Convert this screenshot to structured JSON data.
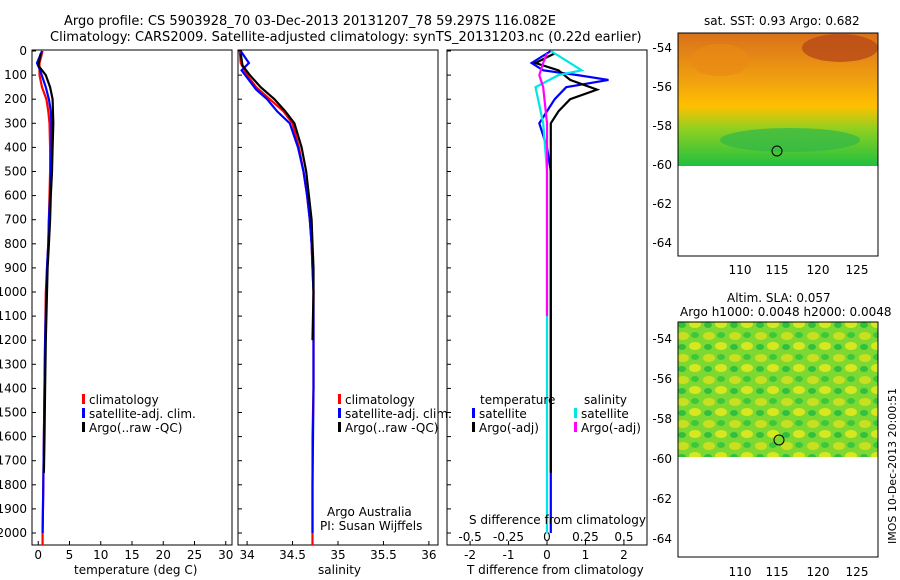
{
  "header": {
    "line1": "Argo profile: CS 5903928_70 03-Dec-2013 20131207_78 59.297S 116.082E",
    "line2": "Climatology: CARS2009. Satellite-adjusted climatology: synTS_20131203.nc (0.22d earlier)"
  },
  "depth_ticks": [
    "0",
    "100",
    "200",
    "300",
    "400",
    "500",
    "600",
    "700",
    "800",
    "900",
    "1000",
    "1100",
    "1200",
    "1300",
    "1400",
    "1500",
    "1600",
    "1700",
    "1800",
    "1900",
    "2000"
  ],
  "colors": {
    "climatology": "#ff0000",
    "satellite": "#0000ff",
    "argo": "#000000",
    "sat_salinity": "#00e5e5",
    "argo_salinity": "#ff00ff"
  },
  "temp_panel": {
    "xlabel": "temperature (deg C)",
    "xticks": [
      "0",
      "5",
      "10",
      "15",
      "20",
      "25",
      "30"
    ],
    "legend": [
      "climatology",
      "satellite-adj. clim.",
      "Argo(..raw -QC)"
    ]
  },
  "sal_panel": {
    "xlabel": "salinity",
    "xticks": [
      "34",
      "34.5",
      "35",
      "35.5",
      "36"
    ],
    "legend": [
      "climatology",
      "satellite-adj. clim.",
      "Argo(..raw -QC)"
    ],
    "note1": "Argo Australia",
    "note2": "PI: Susan Wijffels"
  },
  "diff_panel": {
    "xlabel": "T difference from climatology",
    "top_label": "S difference from climatology",
    "xticks": [
      "-2",
      "-1",
      "0",
      "1",
      "2"
    ],
    "top_ticks": [
      "-0.5",
      "-0.25",
      "0",
      "0.25",
      "0.5"
    ],
    "legend_temp_title": "temperature",
    "legend_sal_title": "salinity",
    "legend_temp": [
      "satellite",
      "Argo(-adj)"
    ],
    "legend_sal": [
      "satellite",
      "Argo(-adj)"
    ]
  },
  "sst_map": {
    "title": "sat. SST: 0.93 Argo: 0.682",
    "lat_ticks": [
      "-54",
      "-56",
      "-58",
      "-60",
      "-62",
      "-64"
    ],
    "lon_ticks": [
      "110",
      "115",
      "120",
      "125"
    ]
  },
  "sla_map": {
    "title1": "Altim. SLA: 0.057",
    "title2": "Argo h1000: 0.0048 h2000: 0.0048",
    "lat_ticks": [
      "-54",
      "-56",
      "-58",
      "-60",
      "-62",
      "-64"
    ],
    "lon_ticks": [
      "110",
      "115",
      "120",
      "125"
    ]
  },
  "stamp": "IMOS 10-Dec-2013 20:00:51",
  "chart_data": [
    {
      "type": "line",
      "xlabel": "temperature (deg C)",
      "xlim": [
        -1,
        31
      ],
      "ylim": [
        2050,
        0
      ],
      "series": [
        {
          "name": "climatology",
          "x": [
            0.7,
            0.2,
            0.2,
            0.6,
            1.3,
            1.6,
            1.8,
            1.9,
            1.9,
            1.8,
            1.7,
            1.6,
            1.4,
            1.2,
            1.1,
            1.0,
            0.9,
            0.8,
            0.7,
            0.7
          ],
          "y": [
            0,
            50,
            100,
            150,
            200,
            250,
            300,
            400,
            500,
            600,
            700,
            800,
            900,
            1000,
            1200,
            1400,
            1600,
            1800,
            2000,
            2050
          ]
        },
        {
          "name": "satellite-adj. clim.",
          "x": [
            0.6,
            -0.2,
            0.3,
            1.2,
            1.7,
            2.0,
            2.1,
            2.1,
            2.0,
            1.9,
            1.7,
            1.6,
            1.4,
            1.3,
            1.1,
            1.0,
            0.9,
            0.8,
            0.7
          ],
          "y": [
            0,
            50,
            80,
            150,
            200,
            250,
            300,
            400,
            500,
            600,
            700,
            800,
            900,
            1000,
            1200,
            1400,
            1600,
            1800,
            2000
          ]
        },
        {
          "name": "Argo(..raw -QC)",
          "x": [
            0.4,
            0.0,
            1.2,
            1.9,
            2.3,
            2.4,
            2.3,
            2.2,
            2.0,
            1.9,
            1.7,
            1.5,
            1.4,
            1.2,
            1.1,
            1.0,
            0.9
          ],
          "y": [
            10,
            60,
            100,
            150,
            200,
            300,
            400,
            500,
            600,
            700,
            800,
            900,
            1000,
            1200,
            1400,
            1600,
            1750
          ]
        }
      ]
    },
    {
      "type": "line",
      "xlabel": "salinity",
      "xlim": [
        33.9,
        36.1
      ],
      "ylim": [
        2050,
        0
      ],
      "series": [
        {
          "name": "climatology",
          "x": [
            33.92,
            33.93,
            34.0,
            34.1,
            34.25,
            34.4,
            34.5,
            34.57,
            34.62,
            34.66,
            34.69,
            34.71,
            34.72,
            34.73,
            34.73,
            34.73,
            34.72,
            34.72,
            34.72,
            34.72
          ],
          "y": [
            0,
            50,
            100,
            150,
            200,
            250,
            300,
            400,
            500,
            600,
            700,
            800,
            900,
            1000,
            1200,
            1400,
            1600,
            1800,
            2000,
            2050
          ]
        },
        {
          "name": "satellite-adj. clim.",
          "x": [
            33.93,
            34.02,
            33.94,
            34.02,
            34.1,
            34.22,
            34.33,
            34.47,
            34.56,
            34.62,
            34.66,
            34.69,
            34.71,
            34.72,
            34.73,
            34.73,
            34.73,
            34.72,
            34.72
          ],
          "y": [
            0,
            50,
            80,
            120,
            160,
            200,
            250,
            300,
            400,
            500,
            600,
            700,
            800,
            900,
            1000,
            1200,
            1400,
            1800,
            2000
          ]
        },
        {
          "name": "Argo(..raw -QC)",
          "x": [
            33.93,
            33.95,
            34.03,
            34.15,
            34.3,
            34.42,
            34.52,
            34.6,
            34.65,
            34.68,
            34.71,
            34.72,
            34.73,
            34.73,
            34.72
          ],
          "y": [
            10,
            60,
            100,
            150,
            200,
            250,
            300,
            400,
            500,
            600,
            700,
            800,
            900,
            1000,
            1200
          ]
        }
      ]
    },
    {
      "type": "line",
      "xlabel": "T difference from climatology",
      "xlim": [
        -2.6,
        2.6
      ],
      "ylim": [
        2050,
        0
      ],
      "series": [
        {
          "name": "temperature satellite",
          "x": [
            0.1,
            -0.4,
            -0.1,
            0.8,
            1.6,
            0.5,
            0.2,
            -0.2,
            0.0,
            0.1,
            0.1,
            0.1,
            0.1,
            0.1,
            0.1,
            0.1
          ],
          "y": [
            0,
            50,
            80,
            100,
            120,
            150,
            200,
            300,
            400,
            500,
            700,
            1000,
            1200,
            1500,
            1800,
            2000
          ]
        },
        {
          "name": "temperature Argo(-adj)",
          "x": [
            0.2,
            -0.3,
            0.3,
            0.6,
            1.3,
            0.6,
            0.3,
            0.1,
            0.1,
            0.1,
            0.1,
            0.1,
            0.1
          ],
          "y": [
            10,
            50,
            80,
            120,
            160,
            200,
            250,
            300,
            400,
            600,
            1000,
            1300,
            1750
          ]
        },
        {
          "name": "salinity satellite",
          "x": [
            0.1,
            0.5,
            0.9,
            0.3,
            -0.3,
            -0.1,
            0.0,
            0.0,
            0.0,
            0.0,
            0.0,
            0.0
          ],
          "y": [
            0,
            40,
            80,
            100,
            150,
            300,
            500,
            700,
            1000,
            1300,
            1600,
            2000
          ]
        },
        {
          "name": "salinity Argo(-adj)",
          "x": [
            0.0,
            -0.1,
            -0.2,
            -0.1,
            0.0,
            0.0,
            0.0,
            0.0
          ],
          "y": [
            10,
            50,
            100,
            150,
            300,
            500,
            800,
            1100
          ]
        }
      ]
    }
  ]
}
